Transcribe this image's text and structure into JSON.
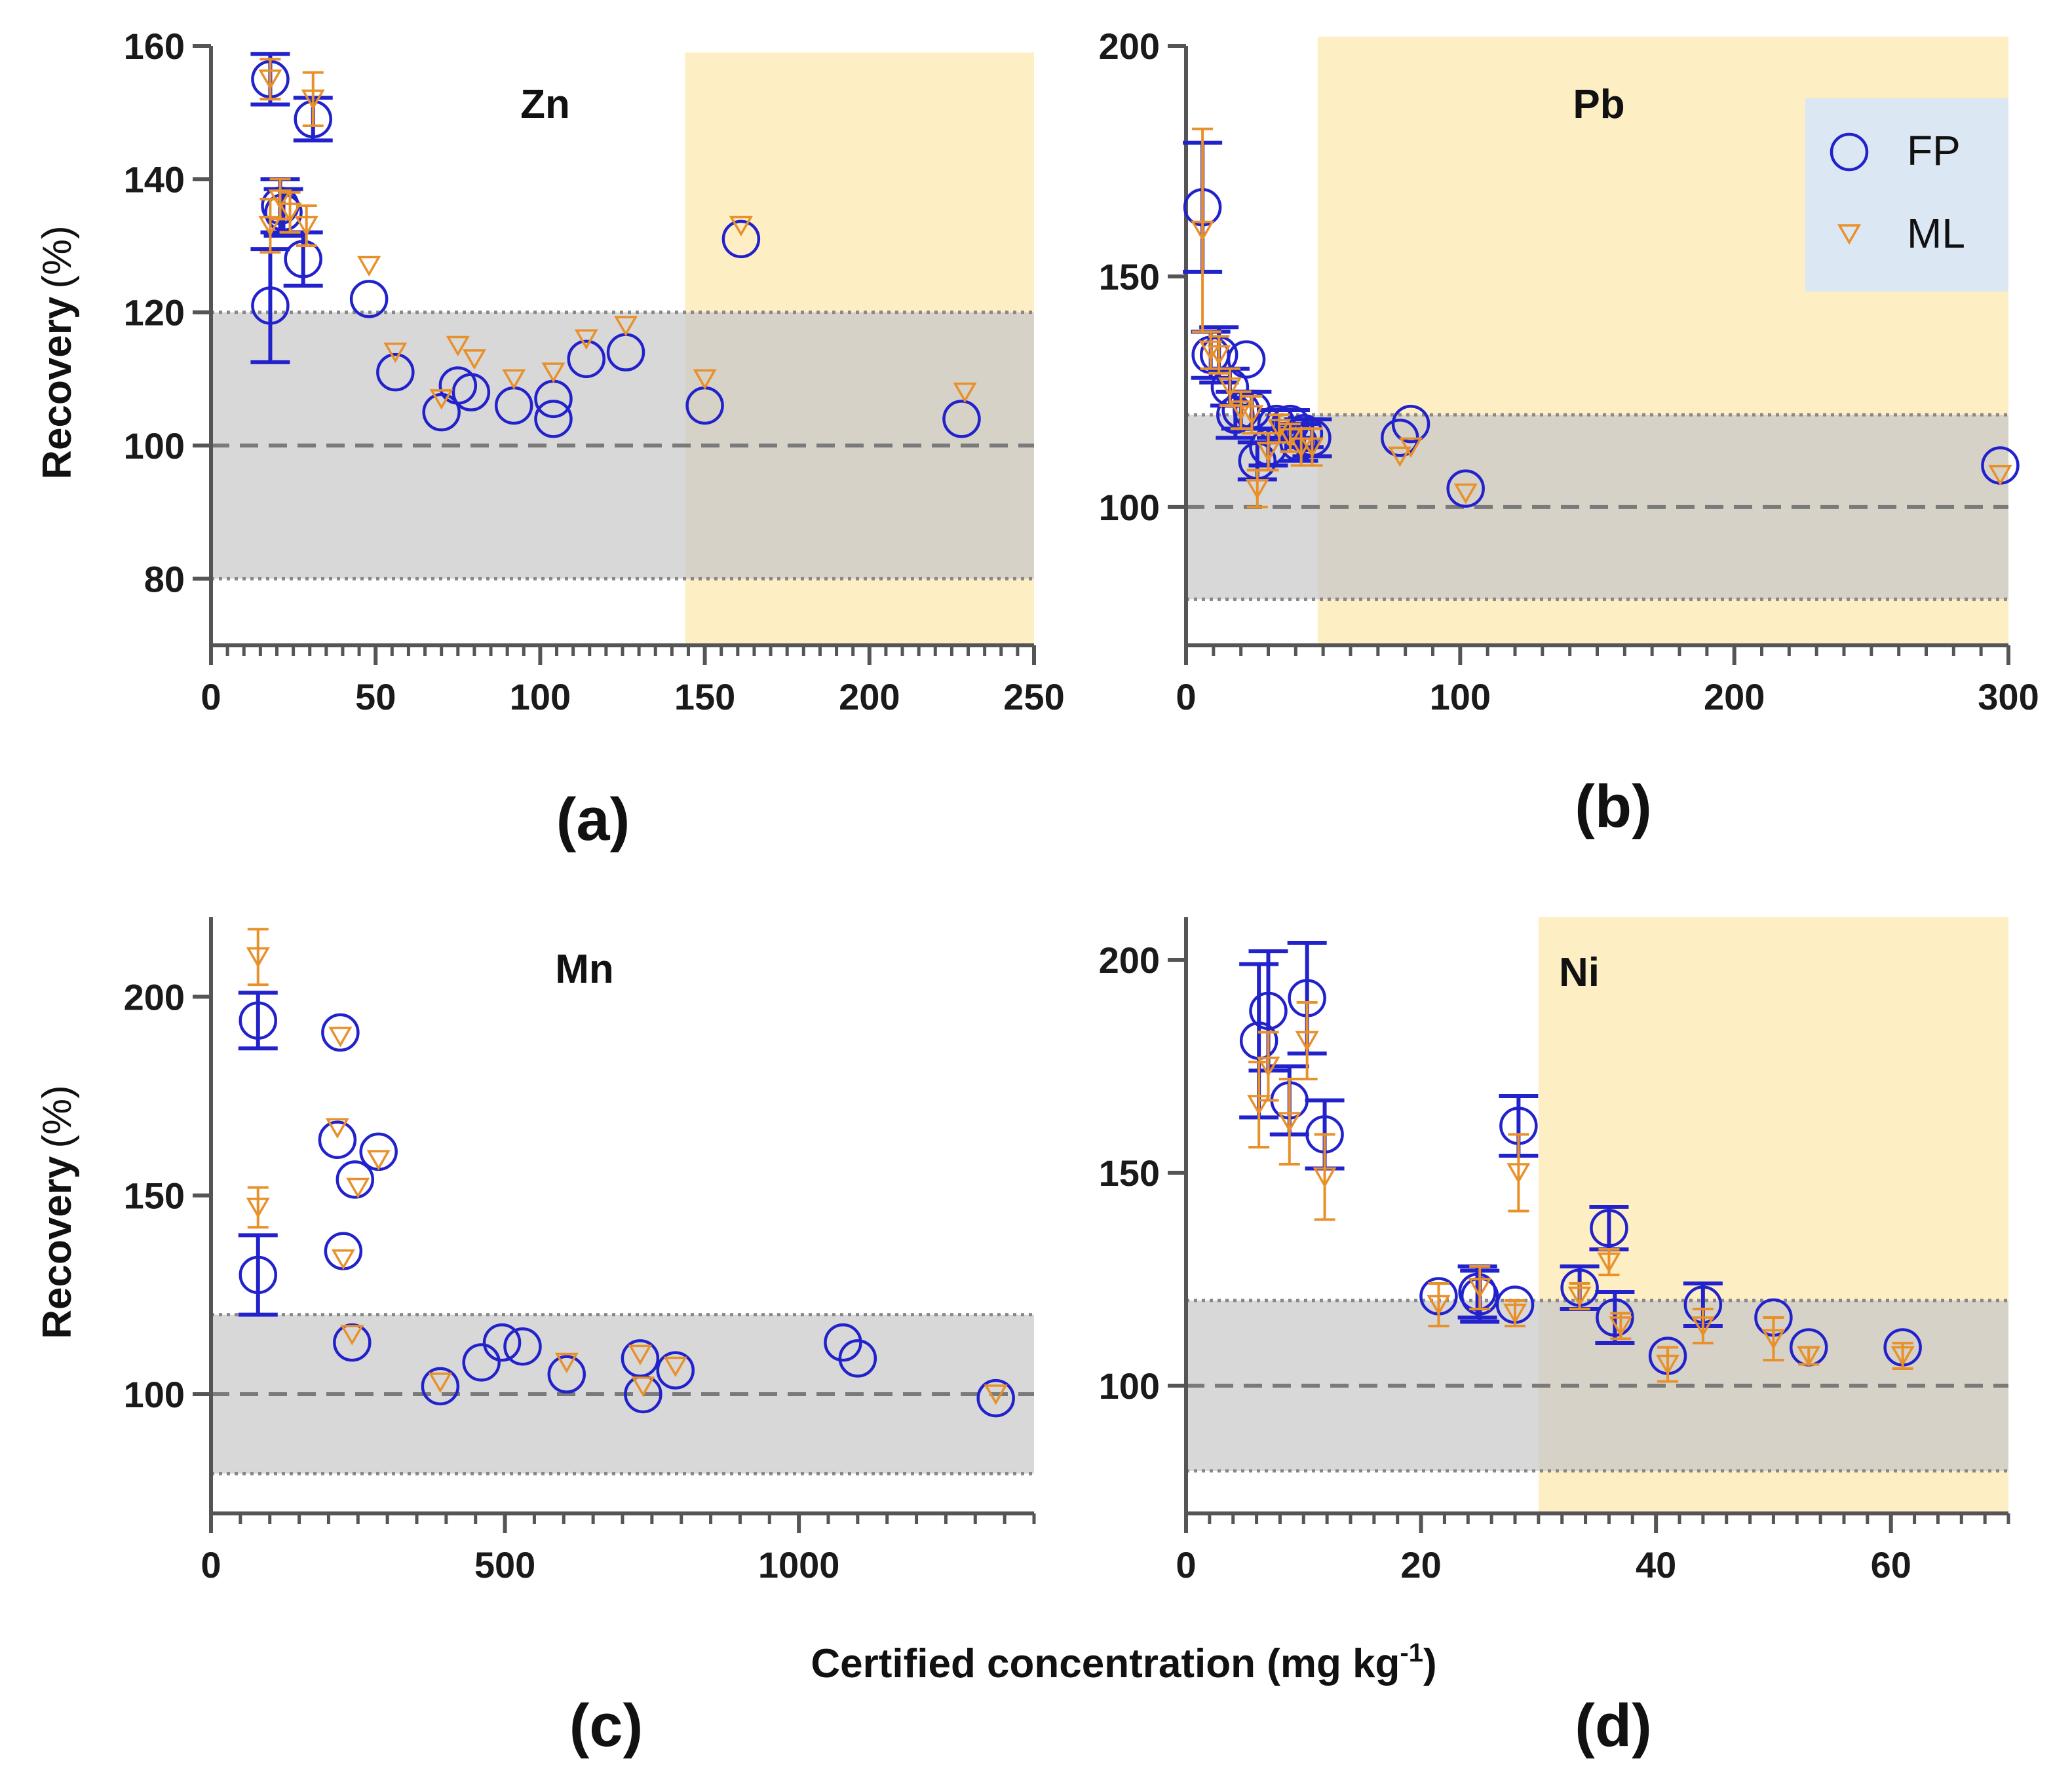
{
  "figure": {
    "ylabel": "Recovery",
    "ylabel_unit": "(%)",
    "xlabel_main": "Certified concentration (mg kg",
    "xlabel_sup": "-1",
    "xlabel_end": ")"
  },
  "legend": {
    "fp_label": "FP",
    "ml_label": "ML"
  },
  "colors": {
    "fp": "#2222cc",
    "ml": "#e8902a",
    "gray_band": "#d8d8d8",
    "yellow_band": "#fdeec4",
    "legend_bg": "#dbe7f3",
    "axis": "#555555"
  },
  "chart_data": [
    {
      "panel_label": "(a)",
      "title": "Zn",
      "type": "scatter",
      "xlim": [
        0,
        250
      ],
      "ylim": [
        70,
        160
      ],
      "xticks": [
        0,
        50,
        100,
        150,
        200,
        250
      ],
      "xtick_labels": [
        "0",
        "50",
        "100",
        "150",
        "200",
        "250"
      ],
      "yticks": [
        80,
        100,
        120,
        140,
        160
      ],
      "ytick_labels": [
        "80",
        "100",
        "120",
        "140",
        "160"
      ],
      "minor_step": 5,
      "acceptance_band": [
        80,
        120
      ],
      "reference_line": 100,
      "highlight_xrange": [
        144,
        250
      ],
      "highlight_ytop": 159,
      "series": [
        {
          "name": "FP",
          "points": [
            {
              "x": 18,
              "y": 155,
              "err": 3.8
            },
            {
              "x": 18,
              "y": 121,
              "err": 8.5
            },
            {
              "x": 21,
              "y": 136,
              "err": 4
            },
            {
              "x": 22,
              "y": 135,
              "err": 3.5
            },
            {
              "x": 28,
              "y": 128,
              "err": 4
            },
            {
              "x": 31,
              "y": 149,
              "err": 3.2
            },
            {
              "x": 48,
              "y": 122,
              "err": 0
            },
            {
              "x": 56,
              "y": 111,
              "err": 0
            },
            {
              "x": 70,
              "y": 105,
              "err": 0
            },
            {
              "x": 75,
              "y": 109,
              "err": 0
            },
            {
              "x": 79,
              "y": 108,
              "err": 0
            },
            {
              "x": 92,
              "y": 106,
              "err": 0
            },
            {
              "x": 104,
              "y": 104,
              "err": 0
            },
            {
              "x": 104,
              "y": 107,
              "err": 0
            },
            {
              "x": 114,
              "y": 113,
              "err": 0
            },
            {
              "x": 126,
              "y": 114,
              "err": 0
            },
            {
              "x": 150,
              "y": 106,
              "err": 0
            },
            {
              "x": 161,
              "y": 131,
              "err": 0
            },
            {
              "x": 228,
              "y": 104,
              "err": 0
            }
          ]
        },
        {
          "name": "ML",
          "points": [
            {
              "x": 18,
              "y": 155,
              "err": 3
            },
            {
              "x": 18,
              "y": 133,
              "err": 4
            },
            {
              "x": 21,
              "y": 137,
              "err": 3
            },
            {
              "x": 24,
              "y": 135,
              "err": 3
            },
            {
              "x": 29,
              "y": 133,
              "err": 3
            },
            {
              "x": 31,
              "y": 152,
              "err": 4
            },
            {
              "x": 48,
              "y": 127,
              "err": 0
            },
            {
              "x": 56,
              "y": 114,
              "err": 0
            },
            {
              "x": 70,
              "y": 107,
              "err": 0
            },
            {
              "x": 75,
              "y": 115,
              "err": 0
            },
            {
              "x": 80,
              "y": 113,
              "err": 0
            },
            {
              "x": 92,
              "y": 110,
              "err": 0
            },
            {
              "x": 104,
              "y": 111,
              "err": 0
            },
            {
              "x": 114,
              "y": 116,
              "err": 0
            },
            {
              "x": 126,
              "y": 118,
              "err": 0
            },
            {
              "x": 150,
              "y": 110,
              "err": 0
            },
            {
              "x": 161,
              "y": 133,
              "err": 0
            },
            {
              "x": 229,
              "y": 108,
              "err": 0
            }
          ]
        }
      ]
    },
    {
      "panel_label": "(b)",
      "title": "Pb",
      "type": "scatter",
      "xlim": [
        0,
        300
      ],
      "ylim": [
        70,
        200
      ],
      "xticks": [
        0,
        100,
        200,
        300
      ],
      "xtick_labels": [
        "0",
        "100",
        "200",
        "300"
      ],
      "yticks": [
        100,
        150,
        200
      ],
      "ytick_labels": [
        "100",
        "150",
        "200"
      ],
      "minor_step": 10,
      "acceptance_band": [
        80,
        120
      ],
      "reference_line": 100,
      "highlight_xrange": [
        48,
        300
      ],
      "highlight_ytop": 202,
      "has_legend": true,
      "series": [
        {
          "name": "FP",
          "points": [
            {
              "x": 6,
              "y": 165,
              "err": 14
            },
            {
              "x": 9,
              "y": 133,
              "err": 5
            },
            {
              "x": 12,
              "y": 133,
              "err": 6
            },
            {
              "x": 16,
              "y": 126,
              "err": 4
            },
            {
              "x": 18,
              "y": 120,
              "err": 5
            },
            {
              "x": 20,
              "y": 121,
              "err": 4
            },
            {
              "x": 22,
              "y": 132,
              "err": 0
            },
            {
              "x": 24,
              "y": 121,
              "err": 4
            },
            {
              "x": 26,
              "y": 110,
              "err": 4
            },
            {
              "x": 30,
              "y": 113,
              "err": 4
            },
            {
              "x": 33,
              "y": 118,
              "err": 3
            },
            {
              "x": 38,
              "y": 118,
              "err": 3
            },
            {
              "x": 41,
              "y": 114,
              "err": 4
            },
            {
              "x": 43,
              "y": 116,
              "err": 3
            },
            {
              "x": 46,
              "y": 115,
              "err": 4
            },
            {
              "x": 78,
              "y": 115,
              "err": 0
            },
            {
              "x": 82,
              "y": 118,
              "err": 0
            },
            {
              "x": 102,
              "y": 104,
              "err": 0
            },
            {
              "x": 297,
              "y": 109,
              "err": 0
            }
          ]
        },
        {
          "name": "ML",
          "points": [
            {
              "x": 6,
              "y": 160,
              "err": 22
            },
            {
              "x": 9,
              "y": 134,
              "err": 4
            },
            {
              "x": 12,
              "y": 133,
              "err": 4
            },
            {
              "x": 16,
              "y": 126,
              "err": 4
            },
            {
              "x": 20,
              "y": 121,
              "err": 4
            },
            {
              "x": 24,
              "y": 120,
              "err": 4
            },
            {
              "x": 26,
              "y": 104,
              "err": 4
            },
            {
              "x": 30,
              "y": 112,
              "err": 4
            },
            {
              "x": 34,
              "y": 117,
              "err": 3
            },
            {
              "x": 38,
              "y": 115,
              "err": 3
            },
            {
              "x": 42,
              "y": 113,
              "err": 4
            },
            {
              "x": 46,
              "y": 113,
              "err": 4
            },
            {
              "x": 78,
              "y": 111,
              "err": 0
            },
            {
              "x": 82,
              "y": 113,
              "err": 0
            },
            {
              "x": 102,
              "y": 103,
              "err": 0
            },
            {
              "x": 297,
              "y": 107,
              "err": 0
            }
          ]
        }
      ]
    },
    {
      "panel_label": "(c)",
      "title": "Mn",
      "type": "scatter",
      "xlim": [
        0,
        1400
      ],
      "ylim": [
        70,
        220
      ],
      "xticks": [
        0,
        500,
        1000
      ],
      "xtick_labels": [
        "0",
        "500",
        "1000"
      ],
      "yticks": [
        100,
        150,
        200
      ],
      "ytick_labels": [
        "100",
        "150",
        "200"
      ],
      "minor_step": 50,
      "acceptance_band": [
        80,
        120
      ],
      "reference_line": 100,
      "series": [
        {
          "name": "FP",
          "points": [
            {
              "x": 80,
              "y": 194,
              "err": 7
            },
            {
              "x": 80,
              "y": 130,
              "err": 10
            },
            {
              "x": 215,
              "y": 164,
              "err": 0
            },
            {
              "x": 220,
              "y": 191,
              "err": 0
            },
            {
              "x": 225,
              "y": 136,
              "err": 0
            },
            {
              "x": 240,
              "y": 113,
              "err": 0
            },
            {
              "x": 245,
              "y": 154,
              "err": 0
            },
            {
              "x": 285,
              "y": 161,
              "err": 0
            },
            {
              "x": 390,
              "y": 102,
              "err": 0
            },
            {
              "x": 460,
              "y": 108,
              "err": 0
            },
            {
              "x": 495,
              "y": 113,
              "err": 0
            },
            {
              "x": 530,
              "y": 112,
              "err": 0
            },
            {
              "x": 605,
              "y": 105,
              "err": 0
            },
            {
              "x": 730,
              "y": 109,
              "err": 0
            },
            {
              "x": 735,
              "y": 100,
              "err": 0
            },
            {
              "x": 790,
              "y": 106,
              "err": 0
            },
            {
              "x": 1075,
              "y": 113,
              "err": 0
            },
            {
              "x": 1100,
              "y": 109,
              "err": 0
            },
            {
              "x": 1335,
              "y": 99,
              "err": 0
            }
          ]
        },
        {
          "name": "ML",
          "points": [
            {
              "x": 80,
              "y": 210,
              "err": 7
            },
            {
              "x": 80,
              "y": 147,
              "err": 5
            },
            {
              "x": 215,
              "y": 167,
              "err": 0
            },
            {
              "x": 220,
              "y": 190,
              "err": 0
            },
            {
              "x": 225,
              "y": 134,
              "err": 0
            },
            {
              "x": 240,
              "y": 115,
              "err": 0
            },
            {
              "x": 250,
              "y": 152,
              "err": 0
            },
            {
              "x": 285,
              "y": 159,
              "err": 0
            },
            {
              "x": 390,
              "y": 103,
              "err": 0
            },
            {
              "x": 605,
              "y": 108,
              "err": 0
            },
            {
              "x": 730,
              "y": 110,
              "err": 0
            },
            {
              "x": 735,
              "y": 102,
              "err": 0
            },
            {
              "x": 790,
              "y": 107,
              "err": 0
            },
            {
              "x": 1335,
              "y": 100,
              "err": 0
            }
          ]
        }
      ]
    },
    {
      "panel_label": "(d)",
      "title": "Ni",
      "type": "scatter",
      "xlim": [
        0,
        70
      ],
      "ylim": [
        70,
        210
      ],
      "xticks": [
        0,
        20,
        40,
        60
      ],
      "xtick_labels": [
        "0",
        "20",
        "40",
        "60"
      ],
      "yticks": [
        100,
        150,
        200
      ],
      "ytick_labels": [
        "100",
        "150",
        "200"
      ],
      "minor_step": 2,
      "acceptance_band": [
        80,
        120
      ],
      "reference_line": 100,
      "highlight_xrange": [
        30,
        70
      ],
      "highlight_ytop": 210,
      "series": [
        {
          "name": "FP",
          "points": [
            {
              "x": 6.2,
              "y": 181,
              "err": 18
            },
            {
              "x": 7,
              "y": 188,
              "err": 14
            },
            {
              "x": 8.8,
              "y": 167,
              "err": 8
            },
            {
              "x": 10.3,
              "y": 191,
              "err": 13
            },
            {
              "x": 11.8,
              "y": 159,
              "err": 8
            },
            {
              "x": 21.5,
              "y": 121,
              "err": 0
            },
            {
              "x": 24.8,
              "y": 122,
              "err": 6
            },
            {
              "x": 25,
              "y": 121,
              "err": 6
            },
            {
              "x": 28,
              "y": 119,
              "err": 0
            },
            {
              "x": 28.3,
              "y": 161,
              "err": 7
            },
            {
              "x": 33.5,
              "y": 123,
              "err": 5
            },
            {
              "x": 36,
              "y": 137,
              "err": 5
            },
            {
              "x": 36.5,
              "y": 116,
              "err": 6
            },
            {
              "x": 41,
              "y": 107,
              "err": 0
            },
            {
              "x": 44,
              "y": 119,
              "err": 5
            },
            {
              "x": 50,
              "y": 116,
              "err": 0
            },
            {
              "x": 53,
              "y": 109,
              "err": 0
            },
            {
              "x": 61,
              "y": 109,
              "err": 0
            }
          ]
        },
        {
          "name": "ML",
          "points": [
            {
              "x": 6.2,
              "y": 166,
              "err": 10
            },
            {
              "x": 7,
              "y": 175,
              "err": 8
            },
            {
              "x": 8.8,
              "y": 162,
              "err": 10
            },
            {
              "x": 10.3,
              "y": 181,
              "err": 9
            },
            {
              "x": 11.8,
              "y": 149,
              "err": 10
            },
            {
              "x": 21.5,
              "y": 119,
              "err": 5
            },
            {
              "x": 25,
              "y": 123,
              "err": 5
            },
            {
              "x": 28,
              "y": 117,
              "err": 3
            },
            {
              "x": 28.3,
              "y": 150,
              "err": 9
            },
            {
              "x": 33.5,
              "y": 121,
              "err": 3
            },
            {
              "x": 36,
              "y": 129,
              "err": 3
            },
            {
              "x": 37,
              "y": 114,
              "err": 3
            },
            {
              "x": 41,
              "y": 105,
              "err": 4
            },
            {
              "x": 44,
              "y": 114,
              "err": 4
            },
            {
              "x": 50,
              "y": 111,
              "err": 5
            },
            {
              "x": 53,
              "y": 107,
              "err": 2
            },
            {
              "x": 61,
              "y": 107,
              "err": 3
            }
          ]
        }
      ]
    }
  ]
}
